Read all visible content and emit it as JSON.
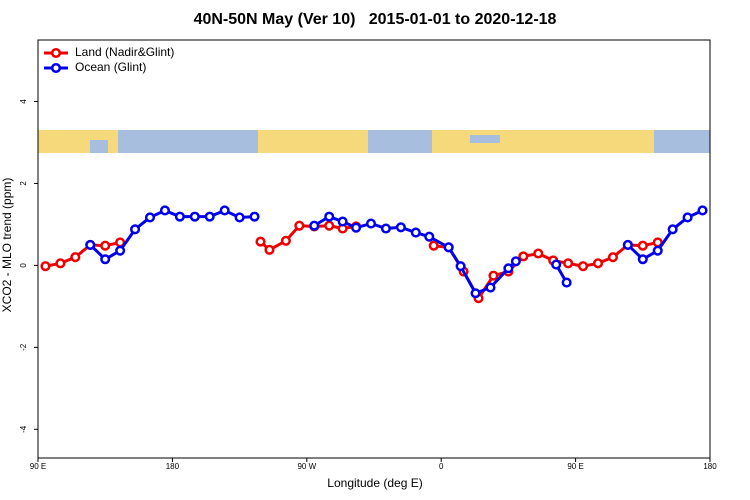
{
  "chart_data": {
    "type": "line",
    "title": "40N-50N May (Ver 10)   2015-01-01 to 2020-12-18",
    "x_label": "Longitude (deg E)",
    "y_label": "XCO2 - MLO trend (ppm)",
    "xlim": [
      90,
      540
    ],
    "ylim": [
      -4.7,
      5.5
    ],
    "xticks": [
      {
        "value": 90,
        "label": "90 E"
      },
      180,
      {
        "value": 270,
        "label": "90 W"
      },
      {
        "value": 360,
        "label": "0"
      },
      {
        "value": 450,
        "label": "90 E"
      },
      {
        "value": 540,
        "label": "180"
      }
    ],
    "yticks": [
      -4,
      -2,
      0,
      2,
      4
    ],
    "legend": "top-left",
    "series": [
      {
        "name": "Land (Nadir&Glint)",
        "color": "#ee0000",
        "x": [
          95,
          105,
          115,
          125,
          135,
          145,
          190,
          239,
          245,
          256,
          265,
          275,
          285,
          294,
          303,
          330,
          355,
          365,
          375,
          385,
          395,
          405,
          415,
          425,
          435,
          445,
          455,
          465,
          475,
          485,
          495,
          505
        ],
        "values": [
          -0.02,
          0.05,
          0.2,
          0.5,
          0.48,
          0.56,
          null,
          0.58,
          0.38,
          0.6,
          0.97,
          0.95,
          0.97,
          0.9,
          0.95,
          null,
          0.48,
          0.44,
          -0.15,
          -0.8,
          -0.25,
          -0.15,
          0.22,
          0.29,
          0.12,
          0.05,
          -0.02,
          0.05,
          0.2,
          0.5,
          0.48,
          0.56
        ]
      },
      {
        "name": "Ocean (Glint)",
        "color": "#0000ee",
        "x": [
          125,
          135,
          145,
          155,
          165,
          175,
          185,
          195,
          205,
          215,
          225,
          235,
          255,
          275,
          285,
          294,
          303,
          313,
          323,
          333,
          343,
          352,
          365,
          373,
          383,
          393,
          405,
          410,
          425,
          437,
          444,
          465,
          485,
          495,
          505,
          515,
          525,
          535
        ],
        "values": [
          0.5,
          0.15,
          0.36,
          0.88,
          1.17,
          1.34,
          1.19,
          1.19,
          1.19,
          1.34,
          1.17,
          1.19,
          null,
          0.97,
          1.19,
          1.07,
          0.92,
          1.02,
          0.9,
          0.93,
          0.8,
          0.7,
          0.44,
          -0.02,
          -0.68,
          -0.54,
          -0.07,
          0.1,
          null,
          0.02,
          -0.42,
          null,
          0.5,
          0.15,
          0.36,
          0.88,
          1.17,
          1.34
        ]
      }
    ]
  }
}
